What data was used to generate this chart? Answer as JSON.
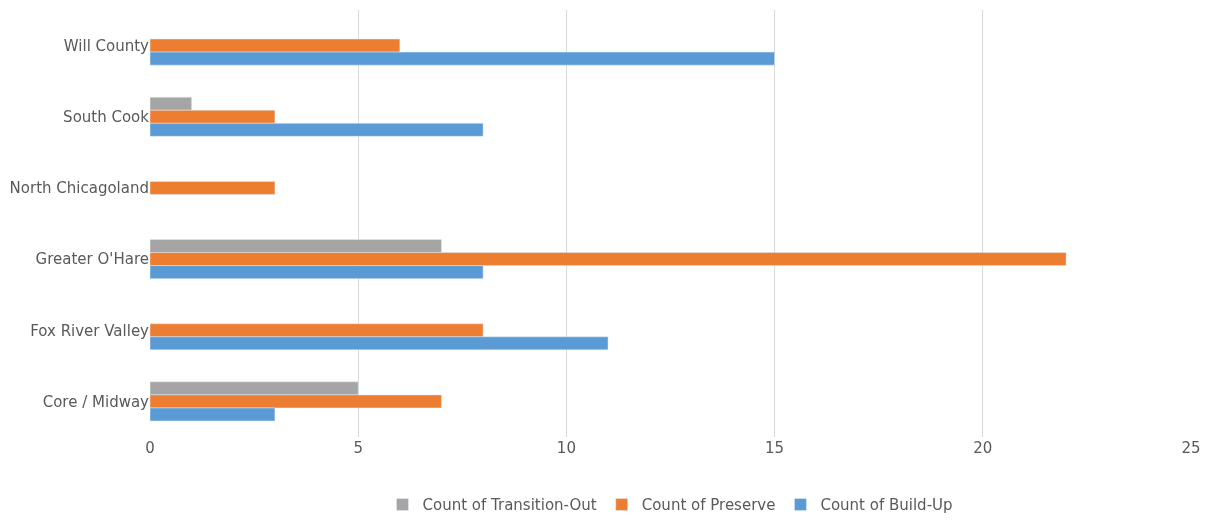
{
  "chart_data": {
    "type": "bar",
    "orientation": "horizontal",
    "categories": [
      "Will County",
      "South Cook",
      "North Chicagoland",
      "Greater O'Hare",
      "Fox River Valley",
      "Core / Midway"
    ],
    "series": [
      {
        "name": "Count of Transition-Out",
        "color": "#a5a5a5",
        "values": [
          null,
          1,
          null,
          7,
          null,
          5
        ]
      },
      {
        "name": "Count of Preserve",
        "color": "#ed7d31",
        "values": [
          6,
          3,
          3,
          22,
          8,
          7
        ]
      },
      {
        "name": "Count of Build-Up",
        "color": "#5b9bd5",
        "values": [
          15,
          8,
          null,
          8,
          11,
          3
        ]
      }
    ],
    "xlim": [
      0,
      25
    ],
    "xticks": [
      0,
      5,
      10,
      15,
      20,
      25
    ],
    "grid": "x",
    "legend": "bottom"
  }
}
